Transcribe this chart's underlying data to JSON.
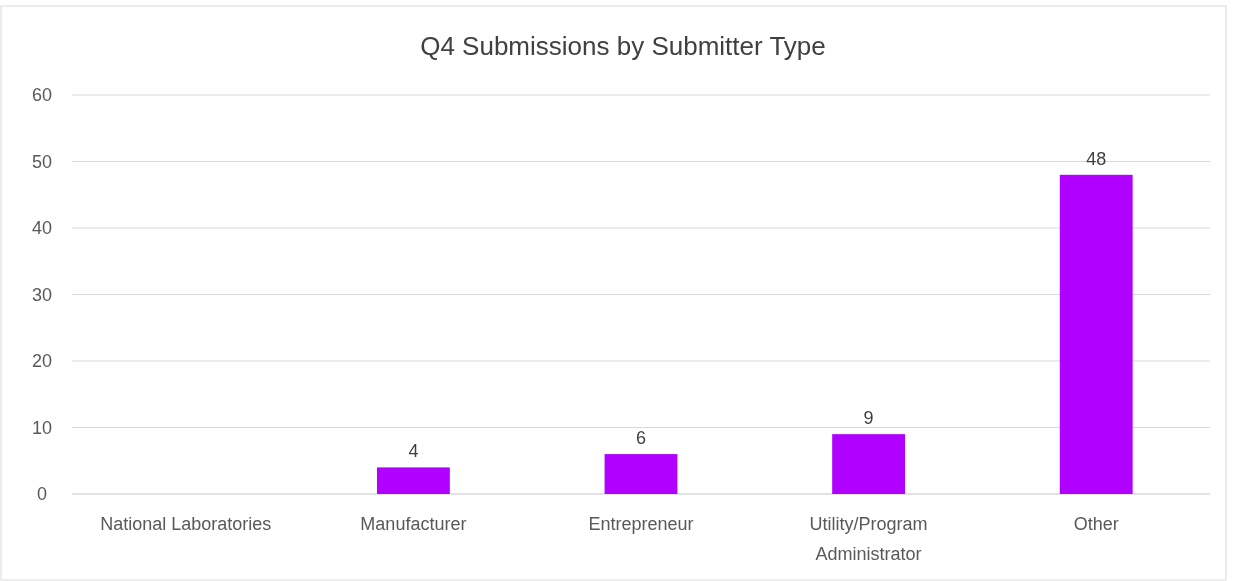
{
  "chart_data": {
    "type": "bar",
    "title": "Q4 Submissions by Submitter Type",
    "categories": [
      "National Laboratories",
      "Manufacturer",
      "Entrepreneur",
      "Utility/Program Administrator",
      "Other"
    ],
    "values": [
      0,
      4,
      6,
      9,
      48
    ],
    "value_labels": [
      null,
      "4",
      "6",
      "9",
      "48"
    ],
    "color": "#b000ff",
    "ylim": [
      0,
      60
    ],
    "yticks": [
      0,
      10,
      20,
      30,
      40,
      50,
      60
    ],
    "grid": "y"
  }
}
